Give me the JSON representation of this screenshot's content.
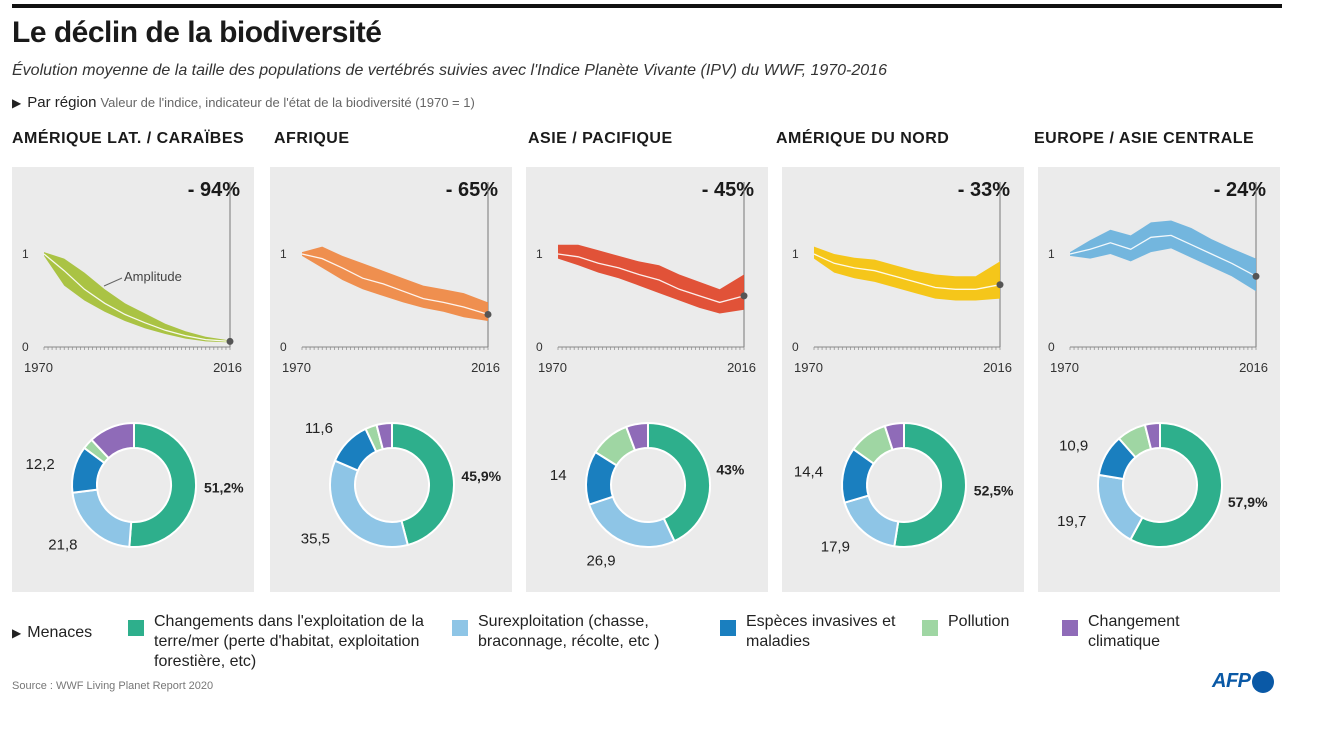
{
  "header": {
    "title": "Le déclin de la biodiversité",
    "subtitle": "Évolution moyenne de la taille des populations de vertébrés suivies avec l'Indice Planète Vivante (IPV) du WWF, 1970-2016",
    "region_label": "Par région",
    "region_desc": "Valeur de l'indice, indicateur de l'état de la biodiversité (1970 = 1)"
  },
  "legend": {
    "label": "Menaces",
    "items": [
      {
        "name": "Changements dans l'exploitation de la terre/mer (perte d'habitat, exploitation forestière, etc)",
        "color": "#2eaf8c"
      },
      {
        "name": "Surexploitation (chasse, braconnage, récolte, etc )",
        "color": "#8ec5e6"
      },
      {
        "name": "Espèces invasives et maladies",
        "color": "#1a7fbf"
      },
      {
        "name": "Pollution",
        "color": "#9fd6a3"
      },
      {
        "name": "Changement climatique",
        "color": "#8f6bb8"
      }
    ]
  },
  "source": "Source : WWF Living Planet Report 2020",
  "logo": "AFP",
  "chart_data": [
    {
      "region": "Amérique lat. / Caraïbes",
      "decline_label": "- 94%",
      "color": "#a6c13b",
      "annotation": "Amplitude",
      "line": {
        "type": "area",
        "x_start": "1970",
        "x_end": "2016",
        "x": [
          1970,
          1975,
          1980,
          1985,
          1990,
          1995,
          2000,
          2005,
          2010,
          2016
        ],
        "y": [
          1.0,
          0.82,
          0.62,
          0.47,
          0.35,
          0.26,
          0.18,
          0.12,
          0.08,
          0.06
        ],
        "lower": [
          0.98,
          0.66,
          0.5,
          0.38,
          0.28,
          0.2,
          0.14,
          0.09,
          0.06,
          0.05
        ],
        "upper": [
          1.02,
          0.95,
          0.8,
          0.62,
          0.47,
          0.36,
          0.25,
          0.17,
          0.11,
          0.07
        ],
        "ylim": [
          0,
          1.8
        ],
        "ticks_y": [
          0,
          1
        ]
      },
      "donut": {
        "type": "pie",
        "values": [
          51.2,
          21.8,
          12.2,
          2.8,
          12.0
        ],
        "labels": [
          "51,2%",
          "21,8",
          "12,2",
          "",
          ""
        ]
      }
    },
    {
      "region": "Afrique",
      "decline_label": "- 65%",
      "color": "#ef8a47",
      "line": {
        "type": "area",
        "x_start": "1970",
        "x_end": "2016",
        "x": [
          1970,
          1975,
          1980,
          1985,
          1990,
          1995,
          2000,
          2005,
          2010,
          2016
        ],
        "y": [
          1.0,
          0.95,
          0.85,
          0.74,
          0.68,
          0.6,
          0.52,
          0.48,
          0.43,
          0.35
        ],
        "lower": [
          0.98,
          0.85,
          0.72,
          0.62,
          0.55,
          0.48,
          0.42,
          0.38,
          0.32,
          0.28
        ],
        "upper": [
          1.02,
          1.08,
          0.98,
          0.9,
          0.82,
          0.74,
          0.66,
          0.62,
          0.58,
          0.48
        ],
        "ylim": [
          0,
          1.8
        ],
        "ticks_y": [
          0,
          1
        ]
      },
      "donut": {
        "type": "pie",
        "values": [
          45.9,
          35.5,
          11.6,
          3.0,
          4.0
        ],
        "labels": [
          "45,9%",
          "35,5",
          "11,6",
          "",
          ""
        ]
      }
    },
    {
      "region": "Asie / Pacifique",
      "decline_label": "- 45%",
      "color": "#e04a2e",
      "line": {
        "type": "area",
        "x_start": "1970",
        "x_end": "2016",
        "x": [
          1970,
          1975,
          1980,
          1985,
          1990,
          1995,
          2000,
          2005,
          2010,
          2016
        ],
        "y": [
          1.0,
          0.97,
          0.9,
          0.85,
          0.78,
          0.72,
          0.62,
          0.55,
          0.48,
          0.55
        ],
        "lower": [
          0.95,
          0.88,
          0.8,
          0.74,
          0.66,
          0.58,
          0.5,
          0.42,
          0.36,
          0.4
        ],
        "upper": [
          1.1,
          1.1,
          1.04,
          0.98,
          0.92,
          0.88,
          0.78,
          0.7,
          0.62,
          0.78
        ],
        "ylim": [
          0,
          1.8
        ],
        "ticks_y": [
          0,
          1
        ]
      },
      "donut": {
        "type": "pie",
        "values": [
          43.0,
          26.9,
          14.0,
          10.4,
          5.7
        ],
        "labels": [
          "43%",
          "26,9",
          "14",
          "",
          ""
        ]
      }
    },
    {
      "region": "Amérique du Nord",
      "decline_label": "- 33%",
      "color": "#f5c40f",
      "line": {
        "type": "area",
        "x_start": "1970",
        "x_end": "2016",
        "x": [
          1970,
          1975,
          1980,
          1985,
          1990,
          1995,
          2000,
          2005,
          2010,
          2016
        ],
        "y": [
          1.0,
          0.9,
          0.85,
          0.82,
          0.76,
          0.7,
          0.64,
          0.62,
          0.62,
          0.67
        ],
        "lower": [
          0.95,
          0.8,
          0.74,
          0.7,
          0.64,
          0.58,
          0.52,
          0.5,
          0.5,
          0.52
        ],
        "upper": [
          1.08,
          1.0,
          0.96,
          0.94,
          0.88,
          0.82,
          0.78,
          0.76,
          0.76,
          0.92
        ],
        "ylim": [
          0,
          1.8
        ],
        "ticks_y": [
          0,
          1
        ]
      },
      "donut": {
        "type": "pie",
        "values": [
          52.5,
          17.9,
          14.4,
          10.2,
          5.0
        ],
        "labels": [
          "52,5%",
          "17,9",
          "14,4",
          "",
          ""
        ]
      }
    },
    {
      "region": "Europe / Asie centrale",
      "decline_label": "- 24%",
      "color": "#6db3dd",
      "line": {
        "type": "area",
        "x_start": "1970",
        "x_end": "2016",
        "x": [
          1970,
          1975,
          1980,
          1985,
          1990,
          1995,
          2000,
          2005,
          2010,
          2016
        ],
        "y": [
          1.0,
          1.05,
          1.12,
          1.05,
          1.18,
          1.2,
          1.1,
          1.0,
          0.9,
          0.76
        ],
        "lower": [
          0.98,
          0.95,
          1.0,
          0.92,
          1.02,
          1.06,
          0.96,
          0.86,
          0.76,
          0.6
        ],
        "upper": [
          1.02,
          1.15,
          1.26,
          1.2,
          1.34,
          1.36,
          1.28,
          1.16,
          1.06,
          0.95
        ],
        "ylim": [
          0,
          1.8
        ],
        "ticks_y": [
          0,
          1
        ]
      },
      "donut": {
        "type": "pie",
        "values": [
          57.9,
          19.7,
          10.9,
          7.6,
          3.9
        ],
        "labels": [
          "57,9%",
          "19,7",
          "10,9",
          "",
          ""
        ]
      }
    }
  ]
}
